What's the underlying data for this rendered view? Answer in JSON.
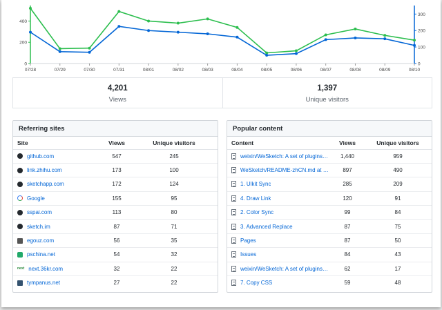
{
  "chart_data": {
    "type": "line",
    "categories": [
      "07/28",
      "07/29",
      "07/30",
      "07/31",
      "08/01",
      "08/02",
      "08/03",
      "08/04",
      "08/05",
      "08/06",
      "08/07",
      "08/08",
      "08/09",
      "08/10"
    ],
    "y_left_ticks": [
      "0",
      "200",
      "400"
    ],
    "y_right_ticks": [
      "0",
      "100",
      "200",
      "300"
    ],
    "ylim_left": [
      0,
      520
    ],
    "ylim_right": [
      0,
      335
    ],
    "grid": false,
    "series": [
      {
        "values": [
          520,
          140,
          145,
          490,
          400,
          380,
          420,
          340,
          100,
          120,
          270,
          325,
          265,
          220
        ],
        "color": "#2cbe4e",
        "axis": "left"
      },
      {
        "values": [
          190,
          72,
          68,
          225,
          200,
          190,
          180,
          160,
          50,
          60,
          145,
          155,
          150,
          110
        ],
        "color": "#0366d6",
        "axis": "right"
      }
    ],
    "title": "",
    "xlabel": "",
    "ylabel": ""
  },
  "stats": [
    {
      "value": "4,201",
      "label": "Views"
    },
    {
      "value": "1,397",
      "label": "Unique visitors"
    }
  ],
  "referring": {
    "title": "Referring sites",
    "headers": [
      "Site",
      "Views",
      "Unique visitors"
    ],
    "rows": [
      {
        "icon": "github-icon",
        "site": "github.com",
        "views": "547",
        "unique": "245"
      },
      {
        "icon": "globe-icon",
        "site": "link.zhihu.com",
        "views": "173",
        "unique": "100"
      },
      {
        "icon": "globe-icon",
        "site": "sketchapp.com",
        "views": "172",
        "unique": "124"
      },
      {
        "icon": "google-icon",
        "site": "Google",
        "views": "155",
        "unique": "95"
      },
      {
        "icon": "globe-icon",
        "site": "sspai.com",
        "views": "113",
        "unique": "80"
      },
      {
        "icon": "globe-icon",
        "site": "sketch.im",
        "views": "87",
        "unique": "71"
      },
      {
        "icon": "fox-icon",
        "site": "egouz.com",
        "views": "56",
        "unique": "35"
      },
      {
        "icon": "pschina-icon",
        "site": "pschina.net",
        "views": "54",
        "unique": "32"
      },
      {
        "icon": "next36kr-icon",
        "site": "next.36kr.com",
        "views": "32",
        "unique": "22"
      },
      {
        "icon": "tympanus-icon",
        "site": "tympanus.net",
        "views": "27",
        "unique": "22"
      }
    ]
  },
  "popular": {
    "title": "Popular content",
    "headers": [
      "Content",
      "Views",
      "Unique visitors"
    ],
    "rows": [
      {
        "icon": "document-icon",
        "content": "weixin/WeSketch: A set of plugins f...",
        "views": "1,440",
        "unique": "959"
      },
      {
        "icon": "document-icon",
        "content": "WeSketch/README-zhCN.md at m...",
        "views": "897",
        "unique": "490"
      },
      {
        "icon": "document-icon",
        "content": "1. Ulkit Sync",
        "views": "285",
        "unique": "209"
      },
      {
        "icon": "document-icon",
        "content": "4. Draw Link",
        "views": "120",
        "unique": "91"
      },
      {
        "icon": "document-icon",
        "content": "2. Color Sync",
        "views": "99",
        "unique": "84"
      },
      {
        "icon": "document-icon",
        "content": "3. Advanced Replace",
        "views": "87",
        "unique": "75"
      },
      {
        "icon": "document-icon",
        "content": "Pages",
        "views": "87",
        "unique": "50"
      },
      {
        "icon": "document-icon",
        "content": "Issues",
        "views": "84",
        "unique": "43"
      },
      {
        "icon": "document-icon",
        "content": "weixin/WeSketch: A set of plugins f...",
        "views": "62",
        "unique": "17"
      },
      {
        "icon": "document-icon",
        "content": "7. Copy CSS",
        "views": "59",
        "unique": "48"
      }
    ]
  }
}
